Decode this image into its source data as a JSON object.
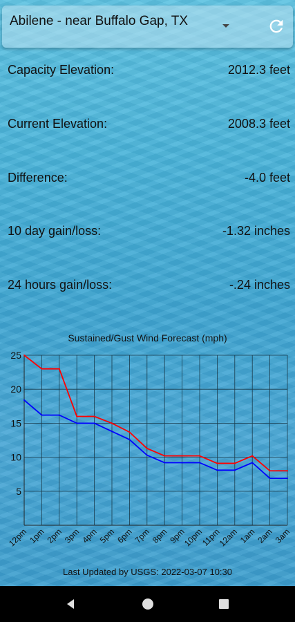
{
  "header": {
    "location": "Abilene - near Buffalo Gap, TX",
    "dropdown_icon": "dropdown-arrow-icon",
    "refresh_icon": "refresh-icon"
  },
  "stats": {
    "capacity": {
      "label": "Capacity Elevation:",
      "value": "2012.3 feet"
    },
    "current": {
      "label": "Current Elevation:",
      "value": "2008.3 feet"
    },
    "difference": {
      "label": "Difference:",
      "value": "-4.0 feet"
    },
    "ten_day": {
      "label": "10 day gain/loss:",
      "value": "-1.32 inches"
    },
    "day": {
      "label": "24 hours gain/loss:",
      "value": "-.24 inches"
    }
  },
  "chart_data": {
    "type": "line",
    "title": "Sustained/Gust Wind Forecast (mph)",
    "categories": [
      "12pm",
      "1pm",
      "2pm",
      "3pm",
      "4pm",
      "5pm",
      "6pm",
      "7pm",
      "8pm",
      "9pm",
      "10pm",
      "11pm",
      "12am",
      "1am",
      "2am",
      "3am"
    ],
    "ylim": [
      0,
      25
    ],
    "yticks": [
      5,
      10,
      15,
      20,
      25
    ],
    "grid": true,
    "series": [
      {
        "color": "#ff0000",
        "values": [
          25,
          23,
          23,
          16,
          16,
          15,
          13.7,
          11.3,
          10.2,
          10.2,
          10.2,
          9.1,
          9.1,
          10.2,
          8,
          8
        ]
      },
      {
        "color": "#0000ff",
        "values": [
          18.4,
          16.2,
          16.2,
          15,
          15,
          13.8,
          12.6,
          10.3,
          9.2,
          9.2,
          9.2,
          8.1,
          8.1,
          9.2,
          6.9,
          6.9
        ]
      }
    ]
  },
  "footer": {
    "updated": "Last Updated by USGS:  2022-03-07 10:30"
  },
  "navbar": {
    "back_icon": "back-triangle-icon",
    "home_icon": "home-circle-icon",
    "recents_icon": "recents-square-icon"
  }
}
